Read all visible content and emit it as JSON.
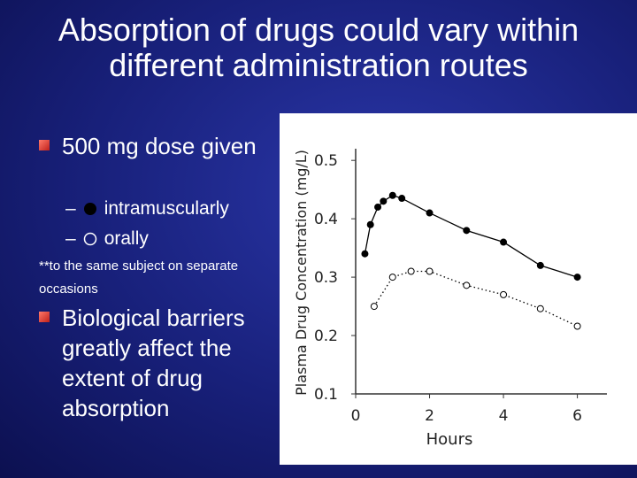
{
  "title": "Absorption of drugs could vary within different administration routes",
  "bullets": [
    "500 mg dose given",
    "**to the same subject on separate occasions",
    "Biological barriers greatly affect the extent of drug absorption"
  ],
  "chart_data": {
    "type": "line",
    "xlabel": "Hours",
    "ylabel": "Plasma Drug Concentration (mg/L)",
    "xlim": [
      0,
      6.8
    ],
    "ylim": [
      0.1,
      0.52
    ],
    "xticks": [
      0,
      2,
      4,
      6
    ],
    "yticks": [
      0.1,
      0.2,
      0.3,
      0.4,
      0.5
    ],
    "series": [
      {
        "name": "intramuscularly",
        "color": "#000000",
        "marker": "filled",
        "line_style": "solid",
        "x": [
          0.25,
          0.4,
          0.6,
          0.75,
          1.0,
          1.25,
          2,
          3,
          4,
          5,
          6
        ],
        "values": [
          0.34,
          0.39,
          0.42,
          0.43,
          0.44,
          0.435,
          0.41,
          0.38,
          0.36,
          0.32,
          0.3
        ]
      },
      {
        "name": "orally",
        "color": "#000000",
        "marker": "open",
        "line_style": "dotted",
        "x": [
          0.5,
          1.0,
          1.5,
          2,
          3,
          4,
          5,
          6
        ],
        "values": [
          0.25,
          0.3,
          0.31,
          0.31,
          0.286,
          0.27,
          0.246,
          0.216
        ]
      }
    ]
  }
}
